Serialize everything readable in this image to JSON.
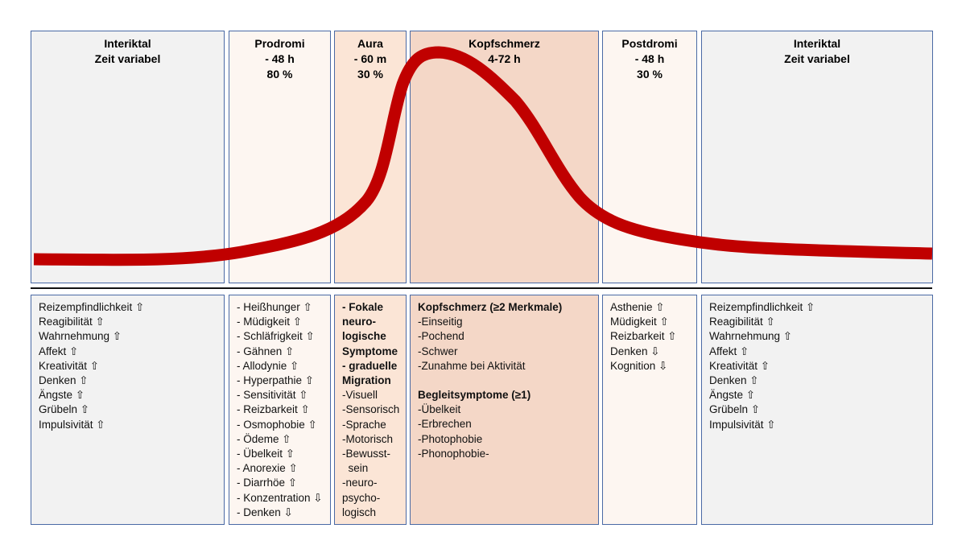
{
  "phases": [
    {
      "title": [
        "Interiktal",
        "Zeit variabel"
      ],
      "items": [
        {
          "t": "Reizempfindlichkeit ⇧"
        },
        {
          "t": "Reagibilität ⇧"
        },
        {
          "t": "Wahrnehmung ⇧"
        },
        {
          "t": "Affekt ⇧"
        },
        {
          "t": "Kreativität ⇧"
        },
        {
          "t": "Denken ⇧"
        },
        {
          "t": "Ängste ⇧"
        },
        {
          "t": "Grübeln ⇧"
        },
        {
          "t": "Impulsivität ⇧"
        }
      ]
    },
    {
      "title": [
        "Prodromi",
        "- 48 h",
        "80 %"
      ],
      "items": [
        {
          "t": "- Heißhunger ⇧"
        },
        {
          "t": "- Müdigkeit ⇧"
        },
        {
          "t": "- Schläfrigkeit ⇧"
        },
        {
          "t": "- Gähnen ⇧"
        },
        {
          "t": "- Allodynie ⇧"
        },
        {
          "t": "- Hyperpathie ⇧"
        },
        {
          "t": "- Sensitivität ⇧"
        },
        {
          "t": "- Reizbarkeit ⇧"
        },
        {
          "t": "- Osmophobie ⇧"
        },
        {
          "t": "- Ödeme ⇧"
        },
        {
          "t": "- Übelkeit ⇧"
        },
        {
          "t": "- Anorexie ⇧"
        },
        {
          "t": "- Diarrhöe ⇧"
        },
        {
          "t": "- Konzentration ⇩"
        },
        {
          "t": "- Denken ⇩"
        }
      ]
    },
    {
      "title": [
        "Aura",
        "- 60 m",
        "30 %"
      ],
      "items": [
        {
          "t": "- Fokale",
          "b": true
        },
        {
          "t": "neuro-",
          "b": true
        },
        {
          "t": "logische",
          "b": true
        },
        {
          "t": "Symptome",
          "b": true
        },
        {
          "t": "- graduelle",
          "b": true
        },
        {
          "t": "Migration",
          "b": true
        },
        {
          "t": "-Visuell"
        },
        {
          "t": "-Sensorisch"
        },
        {
          "t": "-Sprache"
        },
        {
          "t": "-Motorisch"
        },
        {
          "t": "-Bewusst-"
        },
        {
          "t": "  sein"
        },
        {
          "t": "-neuro-"
        },
        {
          "t": "psycho-"
        },
        {
          "t": "logisch"
        }
      ]
    },
    {
      "title": [
        "Kopfschmerz",
        "4-72 h"
      ],
      "items": [
        {
          "t": "Kopfschmerz (≥2 Merkmale)",
          "b": true
        },
        {
          "t": "-Einseitig"
        },
        {
          "t": "-Pochend"
        },
        {
          "t": "-Schwer"
        },
        {
          "t": "-Zunahme bei Aktivität"
        },
        {
          "t": "",
          "gap": true
        },
        {
          "t": "Begleitsymptome (≥1)",
          "b": true
        },
        {
          "t": "-Übelkeit"
        },
        {
          "t": "-Erbrechen"
        },
        {
          "t": "-Photophobie"
        },
        {
          "t": "-Phonophobie-"
        }
      ]
    },
    {
      "title": [
        "Postdromi",
        "- 48 h",
        "30 %"
      ],
      "items": [
        {
          "t": "Asthenie ⇧"
        },
        {
          "t": "Müdigkeit ⇧"
        },
        {
          "t": "Reizbarkeit ⇧"
        },
        {
          "t": "Denken ⇩"
        },
        {
          "t": "Kognition ⇩"
        }
      ]
    },
    {
      "title": [
        "Interiktal",
        "Zeit variabel"
      ],
      "items": [
        {
          "t": "Reizempfindlichkeit ⇧"
        },
        {
          "t": "Reagibilität ⇧"
        },
        {
          "t": "Wahrnehmung ⇧"
        },
        {
          "t": "Affekt ⇧"
        },
        {
          "t": "Kreativität ⇧"
        },
        {
          "t": "Denken ⇧"
        },
        {
          "t": "Ängste ⇧"
        },
        {
          "t": "Grübeln ⇧"
        },
        {
          "t": "Impulsivität ⇧"
        }
      ]
    }
  ],
  "colors": {
    "curve": "#c00000",
    "border": "#4a6aa5"
  }
}
